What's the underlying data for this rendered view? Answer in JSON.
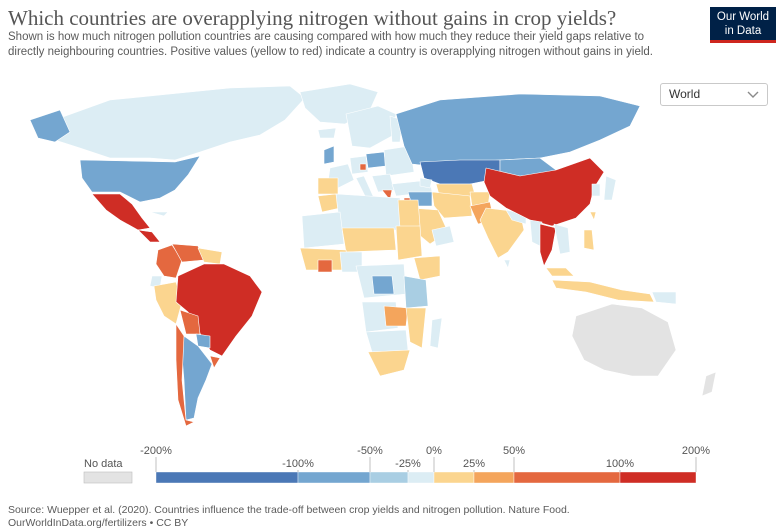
{
  "header": {
    "title": "Which countries are overapplying nitrogen without gains in crop yields?",
    "subtitle": "Shown is how much nitrogen pollution countries are causing compared with how much they reduce their yield gaps relative to directly neighbouring countries. Positive values (yellow to red) indicate a country is overapplying nitrogen without gains in yield."
  },
  "logo": {
    "line1": "Our World",
    "line2": "in Data"
  },
  "region_select": {
    "value": "World",
    "icon": "chevron-down-icon"
  },
  "colors": {
    "bin1": "#4b78b6",
    "bin2": "#74a6d0",
    "bin3": "#a9cee3",
    "bin4": "#dcedf4",
    "bin5": "#fbd58f",
    "bin6": "#f4a55c",
    "bin7": "#e4683f",
    "bin8": "#cf2d25",
    "no_data": "#e3e3e3",
    "ocean": "#ffffff",
    "border": "#ffffff"
  },
  "legend": {
    "no_data_label": "No data",
    "tick_labels": [
      "-200%",
      "-100%",
      "-50%",
      "-25%",
      "0%",
      "25%",
      "50%",
      "100%",
      "200%"
    ]
  },
  "footer": {
    "source": "Source: Wuepper et al. (2020). Countries influence the trade-off between crop yields and nitrogen pollution. Nature Food.",
    "url": "OurWorldInData.org/fertilizers • CC BY"
  }
}
